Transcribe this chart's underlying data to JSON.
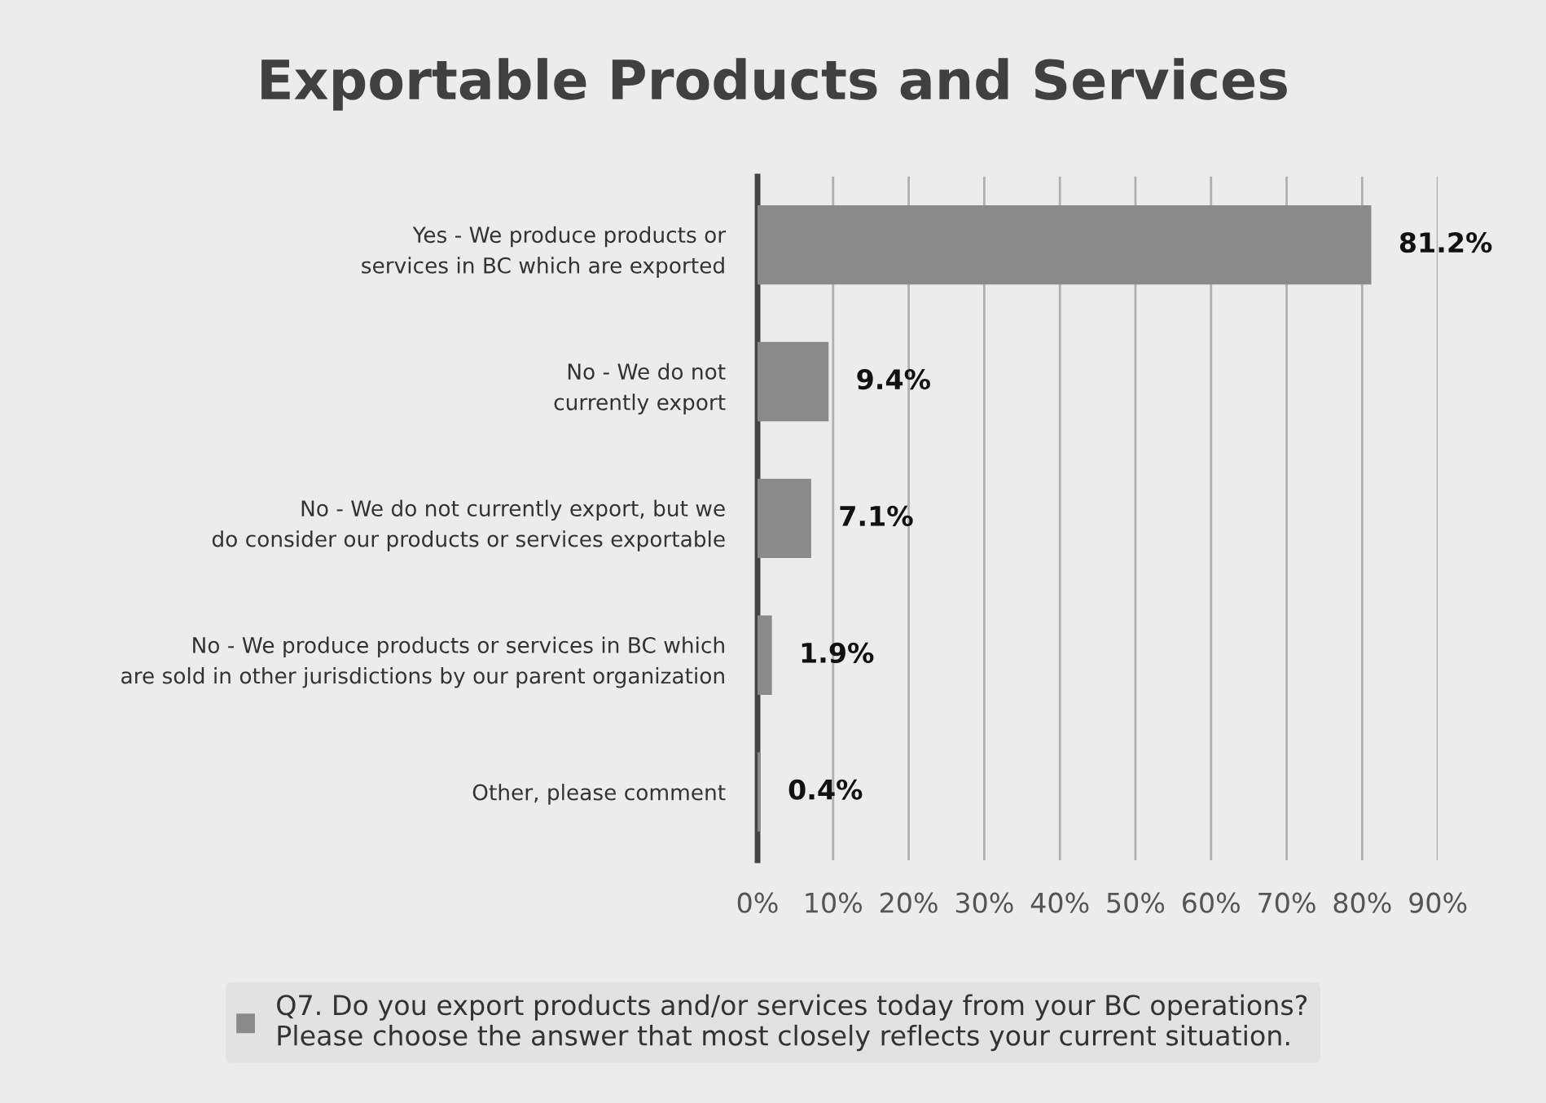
{
  "chart_data": {
    "type": "bar",
    "orientation": "horizontal",
    "title": "Exportable Products and Services",
    "categories": [
      "Yes - We produce products or\nservices in BC which are exported",
      "No - We do not\ncurrently export",
      "No - We do not currently export, but we\ndo consider our products or services exportable",
      "No - We produce products or services in BC which\nare sold in other jurisdictions by our parent organization",
      "Other, please comment"
    ],
    "series": [
      {
        "name": "Q7. Do you export products and/or services today from your BC operations?\nPlease choose the answer that most closely reflects your current situation.",
        "color": "#8a8a8a",
        "values": [
          81.2,
          9.4,
          7.1,
          1.9,
          0.4
        ],
        "value_labels": [
          "81.2%",
          "9.4%",
          "7.1%",
          "1.9%",
          "0.4%"
        ]
      }
    ],
    "xlim": [
      0,
      90
    ],
    "xticks": [
      {
        "value": 0,
        "label": "0%"
      },
      {
        "value": 10,
        "label": "10%"
      },
      {
        "value": 20,
        "label": "20%"
      },
      {
        "value": 30,
        "label": "30%"
      },
      {
        "value": 40,
        "label": "40%"
      },
      {
        "value": 50,
        "label": "50%"
      },
      {
        "value": 60,
        "label": "60%"
      },
      {
        "value": 70,
        "label": "70%"
      },
      {
        "value": 80,
        "label": "80%"
      },
      {
        "value": 90,
        "label": "90%"
      }
    ],
    "grid": "x",
    "legend": "bottom"
  }
}
